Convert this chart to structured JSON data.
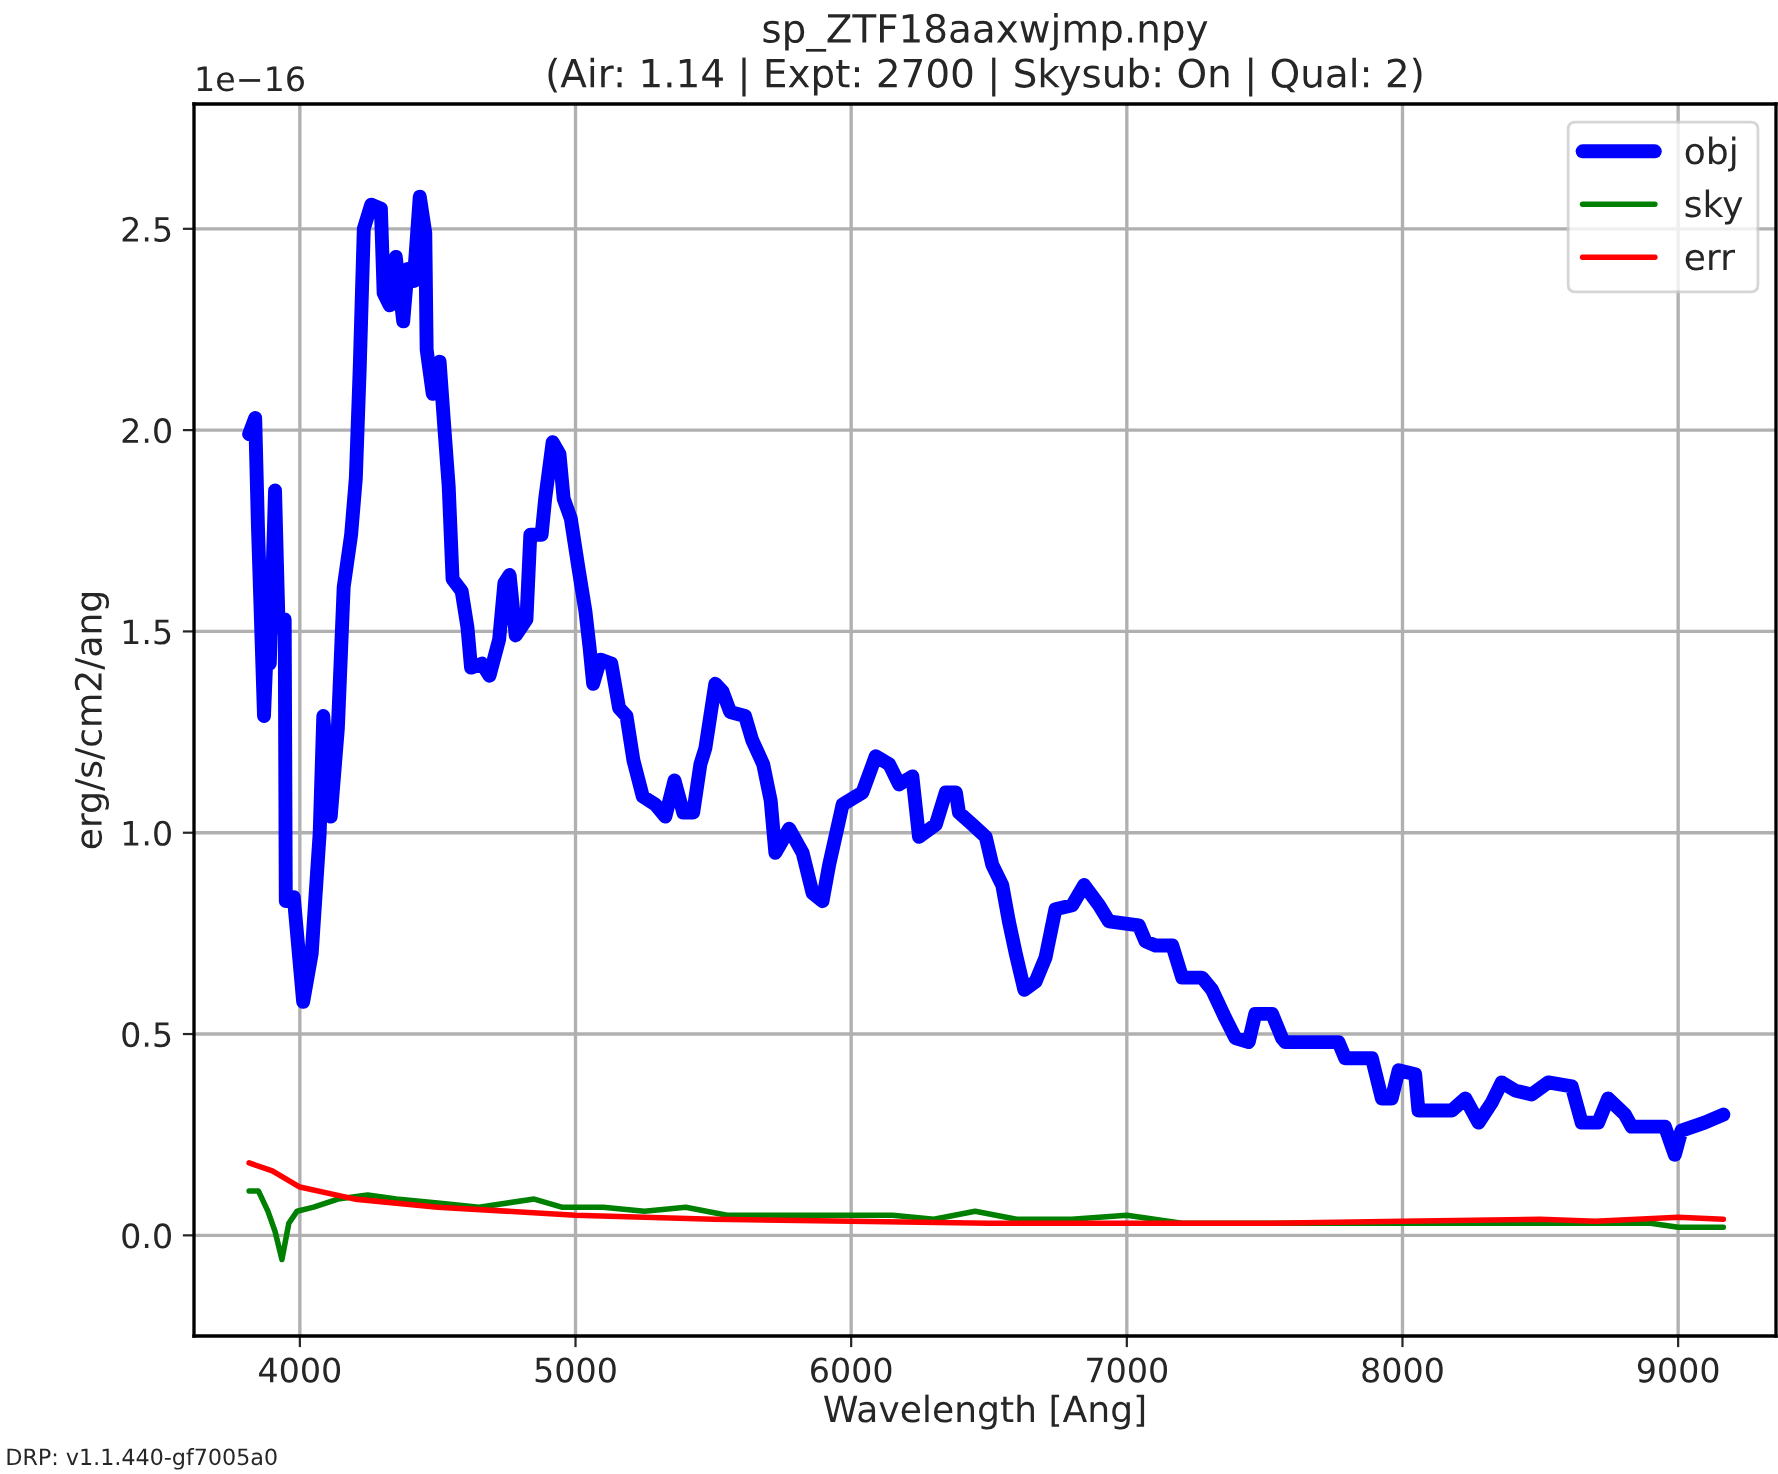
{
  "chart_data": {
    "type": "line",
    "title": "sp_ZTF18aaxwjmp.npy\n(Air: 1.14 | Expt: 2700 | Skysub: On | Qual: 2)",
    "xlabel": "Wavelength [Ang]",
    "ylabel": "erg/s/cm2/ang",
    "annotations": [
      "1e−16",
      "DRP: v1.1.440-gf7005a0"
    ],
    "xlim": [
      3616,
      9355
    ],
    "xticks": [
      4000,
      5000,
      6000,
      7000,
      8000,
      9000
    ],
    "ylim": [
      -0.25,
      2.81
    ],
    "yticks": [
      {
        "value": 0,
        "label": "0.0"
      },
      0.5,
      {
        "value": 1,
        "label": "1.0"
      },
      1.5,
      {
        "value": 2,
        "label": "2.0"
      },
      2.5
    ],
    "grid": true,
    "legend": "top right",
    "line_style": "solid",
    "marker": "none",
    "series": [
      {
        "name": "obj",
        "color": "#0000ff",
        "x": [
          3816,
          3838,
          3848,
          3870,
          3884,
          3891,
          3910,
          3923,
          3945,
          3949,
          3978,
          4012,
          4043,
          4072,
          4085,
          4112,
          4138,
          4159,
          4186,
          4203,
          4217,
          4232,
          4259,
          4294,
          4304,
          4326,
          4348,
          4375,
          4391,
          4413,
          4435,
          4455,
          4460,
          4482,
          4507,
          4527,
          4540,
          4554,
          4587,
          4608,
          4621,
          4660,
          4688,
          4723,
          4742,
          4761,
          4783,
          4822,
          4836,
          4877,
          4890,
          4917,
          4942,
          4957,
          4983,
          5010,
          5036,
          5051,
          5064,
          5090,
          5130,
          5158,
          5185,
          5210,
          5244,
          5290,
          5326,
          5359,
          5391,
          5427,
          5453,
          5471,
          5507,
          5534,
          5561,
          5615,
          5641,
          5681,
          5708,
          5725,
          5775,
          5824,
          5860,
          5896,
          5920,
          5969,
          6041,
          6089,
          6138,
          6174,
          6222,
          6246,
          6307,
          6343,
          6380,
          6391,
          6440,
          6488,
          6512,
          6548,
          6572,
          6597,
          6628,
          6669,
          6705,
          6741,
          6802,
          6845,
          6899,
          6935,
          7043,
          7068,
          7104,
          7165,
          7201,
          7273,
          7309,
          7357,
          7394,
          7442,
          7466,
          7527,
          7563,
          7575,
          7768,
          7792,
          7889,
          7925,
          7961,
          7986,
          8046,
          8058,
          8179,
          8228,
          8276,
          8324,
          8360,
          8408,
          8469,
          8529,
          8614,
          8650,
          8710,
          8746,
          8807,
          8831,
          8952,
          8988,
          9012,
          9096,
          9164
        ],
        "values": [
          1.99,
          2.03,
          1.76,
          1.29,
          1.53,
          1.42,
          1.85,
          1.51,
          1.53,
          0.83,
          0.84,
          0.58,
          0.7,
          1.0,
          1.29,
          1.04,
          1.26,
          1.61,
          1.74,
          1.88,
          2.15,
          2.5,
          2.56,
          2.55,
          2.34,
          2.31,
          2.43,
          2.27,
          2.4,
          2.37,
          2.58,
          2.49,
          2.2,
          2.09,
          2.17,
          1.98,
          1.86,
          1.63,
          1.6,
          1.51,
          1.41,
          1.42,
          1.39,
          1.48,
          1.62,
          1.64,
          1.49,
          1.53,
          1.74,
          1.74,
          1.83,
          1.97,
          1.94,
          1.83,
          1.78,
          1.66,
          1.55,
          1.46,
          1.37,
          1.43,
          1.42,
          1.31,
          1.29,
          1.18,
          1.09,
          1.07,
          1.04,
          1.13,
          1.05,
          1.05,
          1.17,
          1.21,
          1.37,
          1.35,
          1.3,
          1.29,
          1.23,
          1.17,
          1.08,
          0.95,
          1.01,
          0.95,
          0.85,
          0.83,
          0.92,
          1.07,
          1.1,
          1.19,
          1.17,
          1.12,
          1.14,
          0.99,
          1.02,
          1.1,
          1.1,
          1.05,
          1.02,
          0.99,
          0.92,
          0.87,
          0.78,
          0.7,
          0.61,
          0.63,
          0.69,
          0.81,
          0.82,
          0.87,
          0.82,
          0.78,
          0.77,
          0.73,
          0.72,
          0.72,
          0.64,
          0.64,
          0.61,
          0.54,
          0.49,
          0.48,
          0.55,
          0.55,
          0.49,
          0.48,
          0.48,
          0.44,
          0.44,
          0.34,
          0.34,
          0.41,
          0.4,
          0.31,
          0.31,
          0.34,
          0.28,
          0.33,
          0.38,
          0.36,
          0.35,
          0.38,
          0.37,
          0.28,
          0.28,
          0.34,
          0.3,
          0.27,
          0.27,
          0.2,
          0.26,
          0.28,
          0.3
        ]
      },
      {
        "name": "sky",
        "color": "#008000",
        "x": [
          3816,
          3850,
          3884,
          3910,
          3935,
          3960,
          3990,
          4050,
          4138,
          4246,
          4350,
          4500,
          4650,
          4850,
          4950,
          5100,
          5250,
          5400,
          5550,
          5700,
          6000,
          6150,
          6300,
          6450,
          6600,
          6800,
          7000,
          7200,
          7500,
          7800,
          8000,
          8300,
          8600,
          8900,
          9000,
          9164
        ],
        "values": [
          0.11,
          0.11,
          0.06,
          0.01,
          -0.06,
          0.03,
          0.06,
          0.07,
          0.09,
          0.1,
          0.09,
          0.08,
          0.07,
          0.09,
          0.07,
          0.07,
          0.06,
          0.07,
          0.05,
          0.05,
          0.05,
          0.05,
          0.04,
          0.06,
          0.04,
          0.04,
          0.05,
          0.03,
          0.03,
          0.03,
          0.03,
          0.03,
          0.03,
          0.03,
          0.02,
          0.02
        ]
      },
      {
        "name": "err",
        "color": "#ff0000",
        "x": [
          3816,
          3900,
          4000,
          4200,
          4500,
          5000,
          5500,
          6000,
          6500,
          7000,
          7500,
          8000,
          8500,
          8700,
          9000,
          9164
        ],
        "values": [
          0.18,
          0.16,
          0.12,
          0.09,
          0.07,
          0.05,
          0.04,
          0.035,
          0.03,
          0.03,
          0.03,
          0.035,
          0.04,
          0.035,
          0.045,
          0.04
        ]
      }
    ]
  }
}
